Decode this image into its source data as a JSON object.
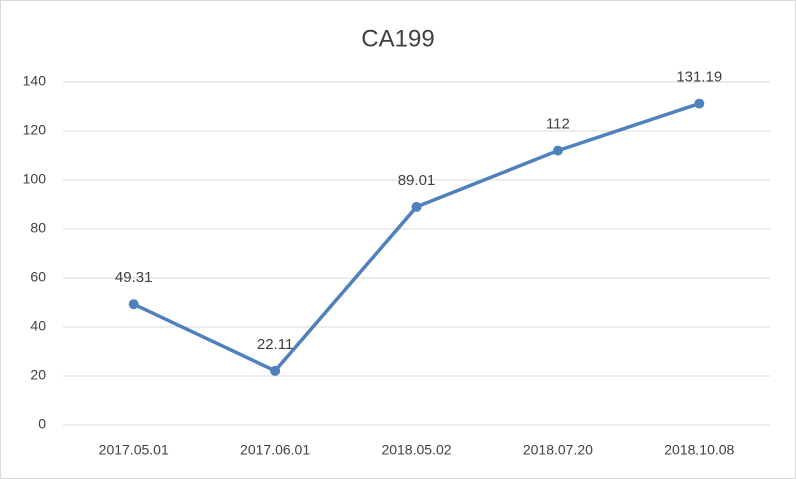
{
  "chart_data": {
    "type": "line",
    "title": "CA199",
    "categories": [
      "2017.05.01",
      "2017.06.01",
      "2018.05.02",
      "2018.07.20",
      "2018.10.08"
    ],
    "values": [
      49.31,
      22.11,
      89.01,
      112,
      131.19
    ],
    "color": "#4f81bd",
    "ylim": [
      0,
      140
    ],
    "yticks": [
      0,
      20,
      40,
      60,
      80,
      100,
      120,
      140
    ],
    "grid": true,
    "data_labels": true
  }
}
